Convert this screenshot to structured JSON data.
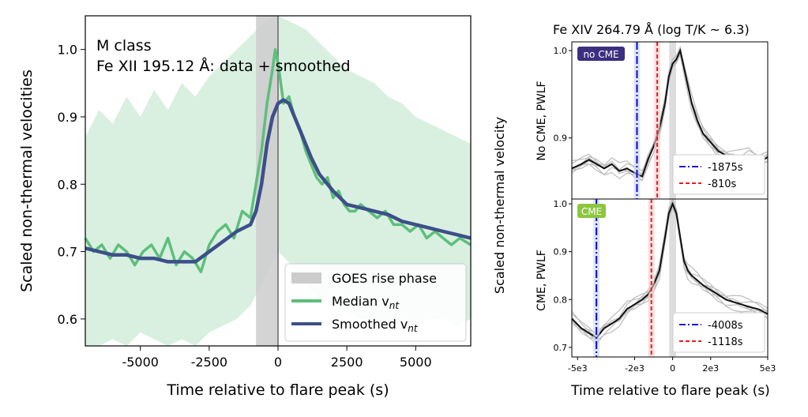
{
  "chart_data": [
    {
      "type": "line",
      "annotation_lines": [
        "M class",
        "Fe XII 195.12 Å: data + smoothed"
      ],
      "xlabel": "Time relative to flare peak (s)",
      "ylabel": "Scaled non-thermal velocities",
      "xlim": [
        -7000,
        7000
      ],
      "ylim": [
        0.56,
        1.05
      ],
      "xticks": [
        -5000,
        -2500,
        0,
        2500,
        5000
      ],
      "xtick_labels": [
        "-5000",
        "-2500",
        "0",
        "2500",
        "5000"
      ],
      "yticks": [
        0.6,
        0.7,
        0.8,
        0.9,
        1.0
      ],
      "ytick_labels": [
        "0.6",
        "0.7",
        "0.8",
        "0.9",
        "1.0"
      ],
      "legend_position": "bottom-right",
      "legend": [
        {
          "label": "GOES rise phase",
          "sub": "",
          "color": "#cccccc"
        },
        {
          "label": "Median v",
          "sub": "nt",
          "color": "#5dbf7b"
        },
        {
          "label": "Smoothed v",
          "sub": "nt",
          "color": "#3d4f8a"
        }
      ],
      "goes_rise_phase": [
        -800,
        0
      ],
      "peak_line_x": 0,
      "colors": {
        "median": "#5dbf7b",
        "smoothed": "#3d4f8a",
        "band": "#d9f0e0",
        "goes": "#cccccc",
        "peak": "#666666"
      },
      "band": {
        "x": [
          -7000,
          -6500,
          -6000,
          -5500,
          -5000,
          -4500,
          -4000,
          -3500,
          -3000,
          -2500,
          -2000,
          -1500,
          -1000,
          -500,
          0,
          500,
          1000,
          1500,
          2000,
          2500,
          3000,
          3500,
          4000,
          4500,
          5000,
          5500,
          6000,
          6500,
          7000
        ],
        "upper": [
          0.87,
          0.91,
          0.89,
          0.93,
          0.9,
          0.94,
          0.91,
          0.95,
          0.93,
          0.96,
          0.98,
          1.0,
          1.02,
          1.04,
          1.05,
          1.04,
          1.03,
          1.01,
          0.99,
          0.97,
          0.96,
          0.95,
          0.93,
          0.92,
          0.9,
          0.89,
          0.88,
          0.87,
          0.86
        ],
        "lower": [
          0.56,
          0.56,
          0.57,
          0.56,
          0.58,
          0.57,
          0.56,
          0.57,
          0.56,
          0.58,
          0.59,
          0.6,
          0.62,
          0.66,
          0.7,
          0.68,
          0.65,
          0.63,
          0.62,
          0.61,
          0.6,
          0.6,
          0.59,
          0.6,
          0.59,
          0.6,
          0.6,
          0.59,
          0.6
        ]
      },
      "series": [
        {
          "name": "Median v_nt",
          "x": [
            -7000,
            -6700,
            -6400,
            -6100,
            -5800,
            -5500,
            -5200,
            -4900,
            -4600,
            -4300,
            -4000,
            -3700,
            -3400,
            -3100,
            -2800,
            -2500,
            -2200,
            -1900,
            -1600,
            -1300,
            -1000,
            -800,
            -600,
            -400,
            -200,
            -100,
            0,
            200,
            400,
            600,
            800,
            1000,
            1200,
            1400,
            1600,
            1800,
            2000,
            2200,
            2400,
            2600,
            2800,
            3000,
            3300,
            3600,
            3900,
            4200,
            4500,
            4800,
            5100,
            5400,
            5700,
            6000,
            6300,
            6600,
            7000
          ],
          "y": [
            0.72,
            0.7,
            0.71,
            0.69,
            0.71,
            0.7,
            0.68,
            0.7,
            0.71,
            0.69,
            0.72,
            0.68,
            0.7,
            0.69,
            0.67,
            0.71,
            0.73,
            0.74,
            0.72,
            0.76,
            0.75,
            0.8,
            0.85,
            0.92,
            0.97,
            1.0,
            0.98,
            0.92,
            0.93,
            0.9,
            0.88,
            0.85,
            0.83,
            0.81,
            0.8,
            0.81,
            0.78,
            0.79,
            0.77,
            0.76,
            0.76,
            0.77,
            0.76,
            0.75,
            0.76,
            0.74,
            0.74,
            0.73,
            0.74,
            0.72,
            0.73,
            0.72,
            0.71,
            0.72,
            0.71
          ]
        },
        {
          "name": "Smoothed v_nt",
          "x": [
            -7000,
            -6500,
            -6000,
            -5500,
            -5000,
            -4500,
            -4000,
            -3500,
            -3000,
            -2500,
            -2000,
            -1500,
            -1000,
            -800,
            -600,
            -400,
            -200,
            0,
            200,
            400,
            600,
            800,
            1000,
            1200,
            1500,
            2000,
            2500,
            3000,
            3500,
            4000,
            4500,
            5000,
            5500,
            6000,
            6500,
            7000
          ],
          "y": [
            0.705,
            0.7,
            0.695,
            0.695,
            0.69,
            0.69,
            0.685,
            0.685,
            0.685,
            0.7,
            0.715,
            0.73,
            0.74,
            0.76,
            0.8,
            0.86,
            0.9,
            0.92,
            0.925,
            0.92,
            0.9,
            0.88,
            0.86,
            0.84,
            0.815,
            0.79,
            0.77,
            0.765,
            0.76,
            0.755,
            0.745,
            0.74,
            0.735,
            0.73,
            0.725,
            0.72
          ]
        }
      ]
    },
    {
      "type": "line",
      "title": "Fe XIV 264.79 Å  (log T/K ~ 6.3)",
      "xlabel": "Time relative to flare peak (s)",
      "ylabel": "Scaled non-thermal velocity",
      "xlim": [
        -5300,
        5000
      ],
      "xticks": [
        -5000,
        -2000,
        0,
        2000,
        5000
      ],
      "xtick_labels": [
        "-5e3",
        "-2e3",
        "0",
        "2e3",
        "5e3"
      ],
      "panels": [
        {
          "badge": "no CME",
          "ylabel": "No CME, PWLF",
          "ylim": [
            0.83,
            1.01
          ],
          "yticks": [
            0.9,
            1.0
          ],
          "ytick_labels": [
            "0.9",
            "1.0"
          ],
          "vlines": [
            {
              "x": -1875,
              "label": "-1875s",
              "style": "dashdot",
              "color": "#1a1acc"
            },
            {
              "x": -810,
              "label": "-810s",
              "style": "dashed",
              "color": "#e02020"
            }
          ],
          "series": {
            "name": "mean",
            "x": [
              -5300,
              -4800,
              -4400,
              -4000,
              -3600,
              -3200,
              -2800,
              -2400,
              -2000,
              -1600,
              -1300,
              -1000,
              -700,
              -400,
              -200,
              0,
              200,
              400,
              600,
              800,
              1000,
              1300,
              1600,
              2000,
              2400,
              2800,
              3200,
              3600,
              4000,
              4500,
              5000
            ],
            "y": [
              0.865,
              0.87,
              0.875,
              0.87,
              0.865,
              0.87,
              0.862,
              0.865,
              0.86,
              0.856,
              0.875,
              0.89,
              0.91,
              0.94,
              0.97,
              0.985,
              0.99,
              1.0,
              0.98,
              0.96,
              0.94,
              0.92,
              0.905,
              0.895,
              0.885,
              0.88,
              0.878,
              0.877,
              0.88,
              0.872,
              0.878
            ]
          },
          "gray_count": 6
        },
        {
          "badge": "CME",
          "ylabel": "CME, PWLF",
          "ylim": [
            0.68,
            1.01
          ],
          "yticks": [
            0.7,
            0.8,
            0.9,
            1.0
          ],
          "ytick_labels": [
            "0.7",
            "0.8",
            "0.9",
            "1.0"
          ],
          "vlines": [
            {
              "x": -4008,
              "label": "-4008s",
              "style": "dashdot",
              "color": "#1a1acc"
            },
            {
              "x": -1118,
              "label": "-1118s",
              "style": "dashed",
              "color": "#e02020"
            }
          ],
          "series": {
            "name": "mean",
            "x": [
              -5300,
              -4800,
              -4400,
              -4000,
              -3600,
              -3200,
              -2800,
              -2400,
              -2000,
              -1600,
              -1300,
              -1000,
              -700,
              -400,
              -200,
              0,
              200,
              400,
              600,
              800,
              1000,
              1300,
              1600,
              2000,
              2400,
              2800,
              3200,
              3600,
              4000,
              4500,
              5000
            ],
            "y": [
              0.76,
              0.74,
              0.73,
              0.72,
              0.74,
              0.75,
              0.76,
              0.78,
              0.79,
              0.8,
              0.81,
              0.83,
              0.86,
              0.93,
              0.98,
              1.0,
              0.98,
              0.93,
              0.88,
              0.86,
              0.85,
              0.84,
              0.83,
              0.82,
              0.81,
              0.8,
              0.795,
              0.79,
              0.785,
              0.78,
              0.77
            ]
          },
          "gray_count": 6
        }
      ]
    }
  ]
}
